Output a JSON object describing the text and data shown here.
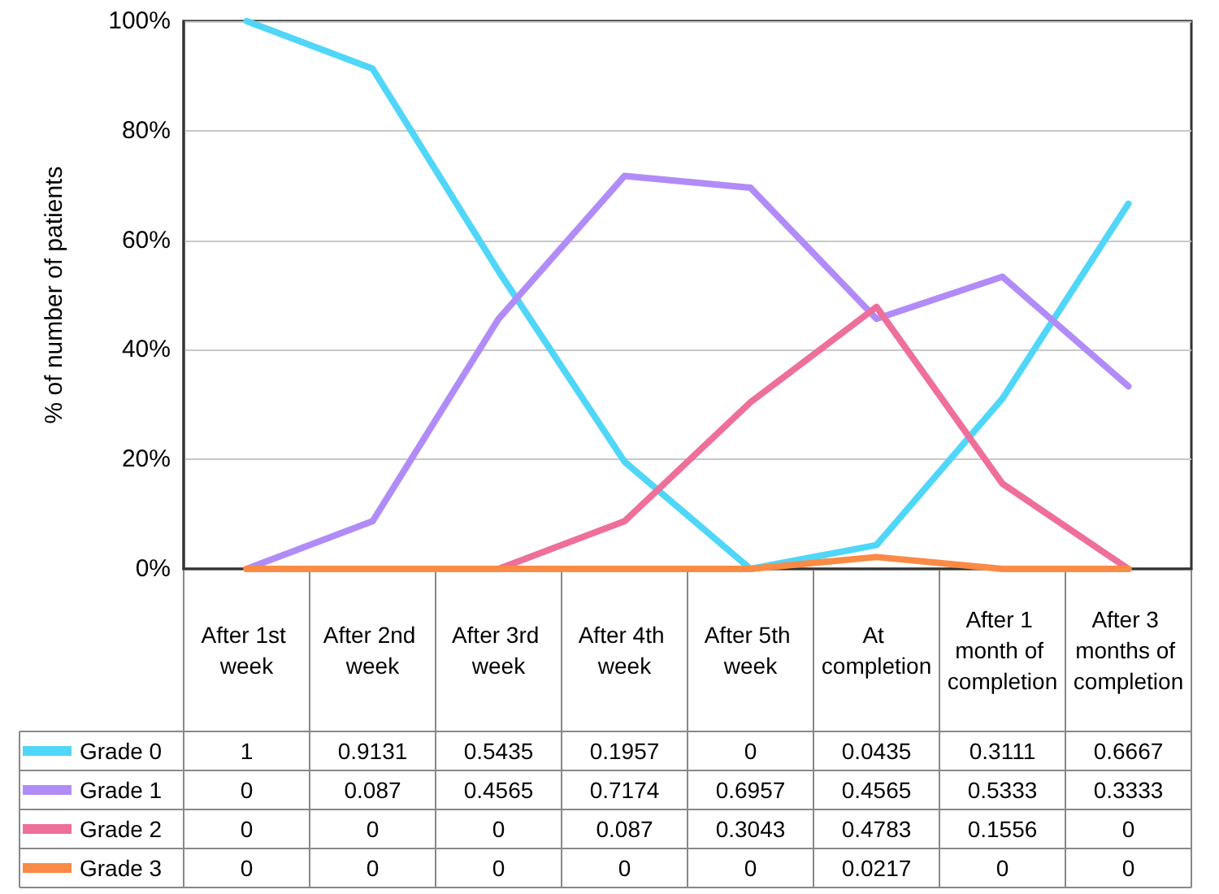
{
  "chart_data": {
    "type": "line",
    "ylabel": "% of number of patients",
    "categories": [
      "After 1st week",
      "After 2nd week",
      "After 3rd week",
      "After 4th week",
      "After 5th week",
      "At completion",
      "After 1 month of completion",
      "After 3 months of completion"
    ],
    "series": [
      {
        "name": "Grade 0",
        "color": "#4fd6f9",
        "values": [
          1,
          0.9131,
          0.5435,
          0.1957,
          0,
          0.0435,
          0.3111,
          0.6667
        ]
      },
      {
        "name": "Grade 1",
        "color": "#b18cf8",
        "values": [
          0,
          0.087,
          0.4565,
          0.7174,
          0.6957,
          0.4565,
          0.5333,
          0.3333
        ]
      },
      {
        "name": "Grade 2",
        "color": "#ee6f9a",
        "values": [
          0,
          0,
          0,
          0.087,
          0.3043,
          0.4783,
          0.1556,
          0
        ]
      },
      {
        "name": "Grade 3",
        "color": "#fb8a45",
        "values": [
          0,
          0,
          0,
          0,
          0,
          0.0217,
          0,
          0
        ]
      }
    ],
    "ylim": [
      0,
      1
    ],
    "yticks": [
      {
        "value": 0,
        "label": "0%"
      },
      {
        "value": 0.2,
        "label": "20%"
      },
      {
        "value": 0.4,
        "label": "40%"
      },
      {
        "value": 0.6,
        "label": "60%"
      },
      {
        "value": 0.8,
        "label": "80%"
      },
      {
        "value": 1,
        "label": "100%"
      }
    ],
    "grid": true,
    "legend": "bottom left",
    "data_labels": true,
    "marker": "none",
    "line_style": "solid"
  }
}
